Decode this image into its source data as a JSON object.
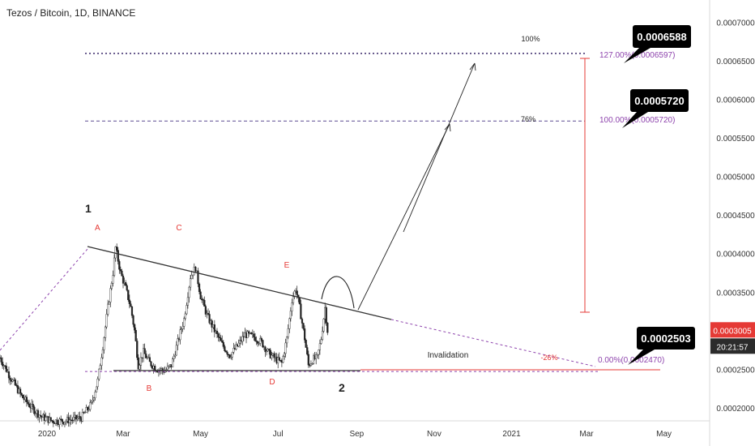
{
  "chart_title": "Tezos / Bitcoin, 1D, BINANCE",
  "colors": {
    "background": "#ffffff",
    "candle": "#222222",
    "trendline": "#333333",
    "fib_purple": "#8e44ad",
    "accent_red": "#e53935",
    "price_badge": "#e53935"
  },
  "chart_data": {
    "type": "candlestick",
    "ylim": [
      0.000183,
      0.000729
    ],
    "x_range": [
      "2019-11-25",
      "2021-06-06"
    ],
    "x_ticks": [
      {
        "date": "2020-01-01",
        "label": "2020"
      },
      {
        "date": "2020-03-01",
        "label": "Mar"
      },
      {
        "date": "2020-05-01",
        "label": "May"
      },
      {
        "date": "2020-07-01",
        "label": "Jul"
      },
      {
        "date": "2020-09-01",
        "label": "Sep"
      },
      {
        "date": "2020-11-01",
        "label": "Nov"
      },
      {
        "date": "2021-01-01",
        "label": "2021"
      },
      {
        "date": "2021-03-01",
        "label": "Mar"
      },
      {
        "date": "2021-05-01",
        "label": "May"
      }
    ],
    "y_ticks": [
      "0.0007000",
      "0.0006500",
      "0.0006000",
      "0.0005500",
      "0.0005000",
      "0.0004500",
      "0.0004000",
      "0.0003500",
      "0.0002500",
      "0.0002000"
    ],
    "current_price": "0.0003005",
    "countdown": "20:21:57",
    "price_path": [
      [
        "2019-11-25",
        0.000265
      ],
      [
        "2019-12-03",
        0.00024
      ],
      [
        "2019-12-12",
        0.000215
      ],
      [
        "2019-12-20",
        0.0002
      ],
      [
        "2019-12-28",
        0.000188
      ],
      [
        "2020-01-05",
        0.000183
      ],
      [
        "2020-01-15",
        0.000183
      ],
      [
        "2020-01-28",
        0.000187
      ],
      [
        "2020-02-05",
        0.000205
      ],
      [
        "2020-02-10",
        0.000235
      ],
      [
        "2020-02-14",
        0.00028
      ],
      [
        "2020-02-18",
        0.00033
      ],
      [
        "2020-02-22",
        0.000375
      ],
      [
        "2020-02-24",
        0.000408
      ],
      [
        "2020-02-28",
        0.000375
      ],
      [
        "2020-03-03",
        0.000355
      ],
      [
        "2020-03-07",
        0.00033
      ],
      [
        "2020-03-10",
        0.0003
      ],
      [
        "2020-03-13",
        0.000255
      ],
      [
        "2020-03-17",
        0.000272
      ],
      [
        "2020-03-22",
        0.000258
      ],
      [
        "2020-03-28",
        0.00025
      ],
      [
        "2020-04-03",
        0.000248
      ],
      [
        "2020-04-08",
        0.000255
      ],
      [
        "2020-04-13",
        0.000285
      ],
      [
        "2020-04-18",
        0.000315
      ],
      [
        "2020-04-23",
        0.00037
      ],
      [
        "2020-04-27",
        0.000382
      ],
      [
        "2020-05-01",
        0.000345
      ],
      [
        "2020-05-06",
        0.00032
      ],
      [
        "2020-05-12",
        0.0003
      ],
      [
        "2020-05-18",
        0.000282
      ],
      [
        "2020-05-24",
        0.000268
      ],
      [
        "2020-05-30",
        0.00028
      ],
      [
        "2020-06-05",
        0.000295
      ],
      [
        "2020-06-12",
        0.000292
      ],
      [
        "2020-06-18",
        0.000285
      ],
      [
        "2020-06-24",
        0.00027
      ],
      [
        "2020-06-30",
        0.000262
      ],
      [
        "2020-07-04",
        0.000258
      ],
      [
        "2020-07-08",
        0.00029
      ],
      [
        "2020-07-12",
        0.00034
      ],
      [
        "2020-07-15",
        0.000355
      ],
      [
        "2020-07-18",
        0.00033
      ],
      [
        "2020-07-22",
        0.00029
      ],
      [
        "2020-07-25",
        0.000255
      ],
      [
        "2020-07-28",
        0.000262
      ],
      [
        "2020-08-01",
        0.000265
      ],
      [
        "2020-08-04",
        0.00029
      ],
      [
        "2020-08-07",
        0.00033
      ],
      [
        "2020-08-09",
        0.0003
      ]
    ],
    "series_lines": {
      "fib_127": "0.0006597",
      "fib_100": "0.0005720",
      "fib_0": "0.0002470"
    }
  },
  "annotations": {
    "wave_1": "1",
    "wave_2": "2",
    "point_a": "A",
    "point_b": "B",
    "point_c": "C",
    "point_d": "D",
    "point_e": "E",
    "pct_100": "100%",
    "pct_76": "76%",
    "pct_neg26": "-26%",
    "invalidation": "Invalidation",
    "fib_127_label": "127.00%(0.0006597)",
    "fib_100_label": "100.00%(0.0005720)",
    "fib_0_label": "0.00%(0.0002470)",
    "target_high": "0.0006588",
    "target_mid": "0.0005720",
    "target_low": "0.0002503"
  }
}
